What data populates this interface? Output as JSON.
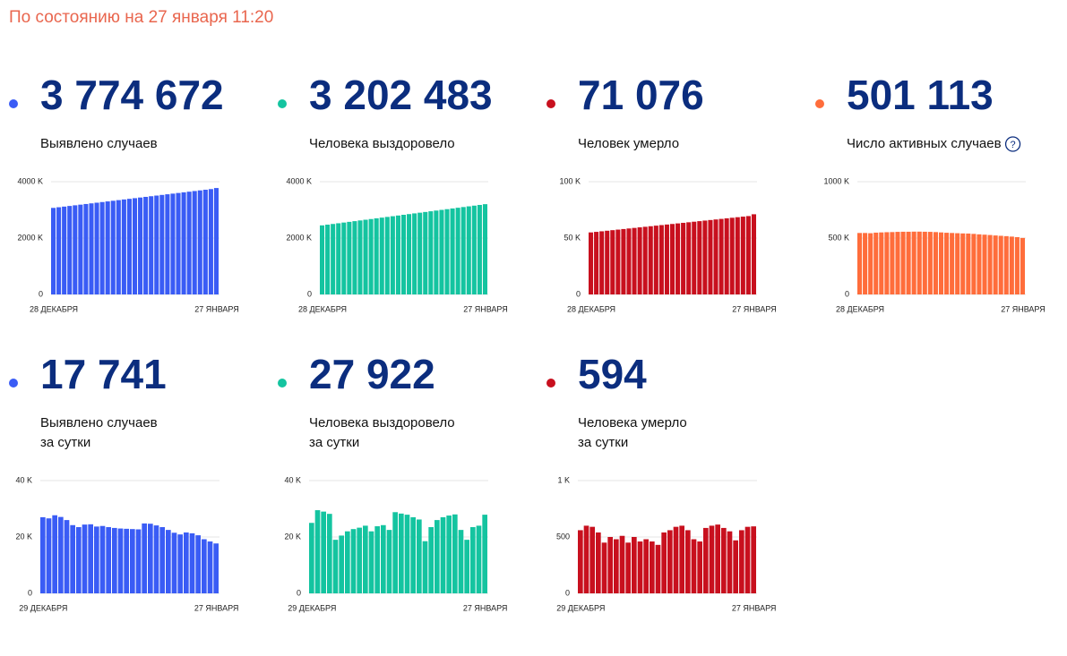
{
  "header": "По состоянию на 27 января 11:20",
  "chart_data": [
    {
      "type": "bar",
      "title": "3 774 672",
      "subtitle": [
        "Выявлено случаев"
      ],
      "color": "#3a5cf5",
      "categories": [
        "28 ДЕКАБРЯ",
        null,
        null,
        null,
        null,
        null,
        null,
        null,
        null,
        null,
        null,
        null,
        null,
        null,
        null,
        null,
        null,
        null,
        null,
        null,
        null,
        null,
        null,
        null,
        null,
        null,
        null,
        null,
        null,
        null,
        "27 ЯНВАРЯ"
      ],
      "values": [
        3070,
        3093,
        3116,
        3139,
        3162,
        3185,
        3208,
        3231,
        3254,
        3277,
        3300,
        3323,
        3346,
        3369,
        3392,
        3415,
        3438,
        3461,
        3484,
        3507,
        3530,
        3553,
        3576,
        3599,
        3622,
        3645,
        3668,
        3691,
        3714,
        3737,
        3775
      ],
      "ylim": [
        0,
        4000
      ],
      "yticks": [
        0,
        {
          "value": 2000,
          "label": "2000 K"
        },
        {
          "value": 4000,
          "label": "4000 K"
        }
      ],
      "grid": true
    },
    {
      "type": "bar",
      "title": "3 202 483",
      "subtitle": [
        "Человека выздоровело"
      ],
      "color": "#14c4a0",
      "categories": [
        "28 ДЕКАБРЯ",
        null,
        null,
        null,
        null,
        null,
        null,
        null,
        null,
        null,
        null,
        null,
        null,
        null,
        null,
        null,
        null,
        null,
        null,
        null,
        null,
        null,
        null,
        null,
        null,
        null,
        null,
        null,
        null,
        null,
        "27 ЯНВАРЯ"
      ],
      "values": [
        2450,
        2475,
        2500,
        2525,
        2550,
        2575,
        2600,
        2625,
        2650,
        2675,
        2700,
        2725,
        2750,
        2775,
        2800,
        2825,
        2850,
        2875,
        2900,
        2925,
        2950,
        2975,
        3000,
        3025,
        3050,
        3075,
        3100,
        3125,
        3150,
        3175,
        3202
      ],
      "ylim": [
        0,
        4000
      ],
      "yticks": [
        0,
        {
          "value": 2000,
          "label": "2000 K"
        },
        {
          "value": 4000,
          "label": "4000 K"
        }
      ],
      "grid": true
    },
    {
      "type": "bar",
      "title": "71 076",
      "subtitle": [
        "Человек умерло"
      ],
      "color": "#c8101e",
      "categories": [
        "28 ДЕКАБРЯ",
        null,
        null,
        null,
        null,
        null,
        null,
        null,
        null,
        null,
        null,
        null,
        null,
        null,
        null,
        null,
        null,
        null,
        null,
        null,
        null,
        null,
        null,
        null,
        null,
        null,
        null,
        null,
        null,
        null,
        "27 ЯНВАРЯ"
      ],
      "values": [
        55.0,
        55.5,
        56.0,
        56.5,
        57.0,
        57.5,
        58.0,
        58.5,
        59.0,
        59.5,
        60.0,
        60.5,
        61.0,
        61.5,
        62.0,
        62.5,
        63.0,
        63.5,
        64.0,
        64.5,
        65.0,
        65.5,
        66.0,
        66.5,
        67.0,
        67.5,
        68.0,
        68.5,
        69.0,
        69.5,
        71.1
      ],
      "ylim": [
        0,
        100
      ],
      "yticks": [
        0,
        {
          "value": 50,
          "label": "50 K"
        },
        {
          "value": 100,
          "label": "100 K"
        }
      ],
      "grid": true
    },
    {
      "type": "bar",
      "title": "501 113",
      "subtitle": [
        "Число активных случаев"
      ],
      "help": "?",
      "color": "#ff6d3b",
      "categories": [
        "28 ДЕКАБРЯ",
        null,
        null,
        null,
        null,
        null,
        null,
        null,
        null,
        null,
        null,
        null,
        null,
        null,
        null,
        null,
        null,
        null,
        null,
        null,
        null,
        null,
        null,
        null,
        null,
        null,
        null,
        null,
        null,
        null,
        "27 ЯНВАРЯ"
      ],
      "values": [
        545,
        545,
        543,
        548,
        550,
        552,
        553,
        555,
        556,
        556,
        557,
        557,
        556,
        555,
        553,
        550,
        547,
        545,
        543,
        541,
        540,
        537,
        533,
        530,
        527,
        523,
        520,
        517,
        513,
        508,
        501
      ],
      "ylim": [
        0,
        1000
      ],
      "yticks": [
        0,
        {
          "value": 500,
          "label": "500 K"
        },
        {
          "value": 1000,
          "label": "1000 K"
        }
      ],
      "grid": true
    },
    {
      "type": "bar",
      "title": "17 741",
      "subtitle": [
        "Выявлено случаев",
        "за сутки"
      ],
      "color": "#3a5cf5",
      "categories": [
        "29 ДЕКАБРЯ",
        null,
        null,
        null,
        null,
        null,
        null,
        null,
        null,
        null,
        null,
        null,
        null,
        null,
        null,
        null,
        null,
        null,
        null,
        null,
        null,
        null,
        null,
        null,
        null,
        null,
        null,
        null,
        null,
        "27 ЯНВАРЯ"
      ],
      "values": [
        27.0,
        26.6,
        27.7,
        27.1,
        26.0,
        24.2,
        23.5,
        24.4,
        24.5,
        23.7,
        23.9,
        23.5,
        23.2,
        23.0,
        22.9,
        22.8,
        22.7,
        24.8,
        24.7,
        24.1,
        23.5,
        22.5,
        21.5,
        20.9,
        21.6,
        21.3,
        20.6,
        19.2,
        18.4,
        17.7
      ],
      "ylim": [
        0,
        40
      ],
      "yticks": [
        0,
        {
          "value": 20,
          "label": "20 K"
        },
        {
          "value": 40,
          "label": "40 K"
        }
      ],
      "grid": true
    },
    {
      "type": "bar",
      "title": "27 922",
      "subtitle": [
        "Человека выздоровело",
        "за сутки"
      ],
      "color": "#14c4a0",
      "categories": [
        "29 ДЕКАБРЯ",
        null,
        null,
        null,
        null,
        null,
        null,
        null,
        null,
        null,
        null,
        null,
        null,
        null,
        null,
        null,
        null,
        null,
        null,
        null,
        null,
        null,
        null,
        null,
        null,
        null,
        null,
        null,
        null,
        "27 ЯНВАРЯ"
      ],
      "values": [
        25.0,
        29.5,
        29.0,
        28.2,
        19.0,
        20.5,
        22.0,
        22.8,
        23.3,
        24.0,
        22.0,
        23.8,
        24.2,
        22.5,
        28.8,
        28.3,
        27.9,
        27.0,
        26.2,
        18.5,
        23.5,
        26.0,
        27.0,
        27.6,
        28.0,
        22.5,
        19.0,
        23.5,
        24.0,
        27.9
      ],
      "ylim": [
        0,
        40
      ],
      "yticks": [
        0,
        {
          "value": 20,
          "label": "20 K"
        },
        {
          "value": 40,
          "label": "40 K"
        }
      ],
      "grid": true
    },
    {
      "type": "bar",
      "title": "594",
      "subtitle": [
        "Человека умерло",
        "за сутки"
      ],
      "color": "#c8101e",
      "categories": [
        "29 ДЕКАБРЯ",
        null,
        null,
        null,
        null,
        null,
        null,
        null,
        null,
        null,
        null,
        null,
        null,
        null,
        null,
        null,
        null,
        null,
        null,
        null,
        null,
        null,
        null,
        null,
        null,
        null,
        null,
        null,
        null,
        "27 ЯНВАРЯ"
      ],
      "values": [
        560,
        600,
        590,
        540,
        450,
        500,
        480,
        510,
        450,
        500,
        460,
        480,
        460,
        430,
        540,
        560,
        590,
        600,
        560,
        480,
        460,
        580,
        600,
        610,
        580,
        550,
        470,
        560,
        590,
        594
      ],
      "ylim": [
        0,
        1000
      ],
      "yticks": [
        0,
        500,
        {
          "value": 1000,
          "label": "1 K"
        }
      ],
      "grid": true
    }
  ]
}
